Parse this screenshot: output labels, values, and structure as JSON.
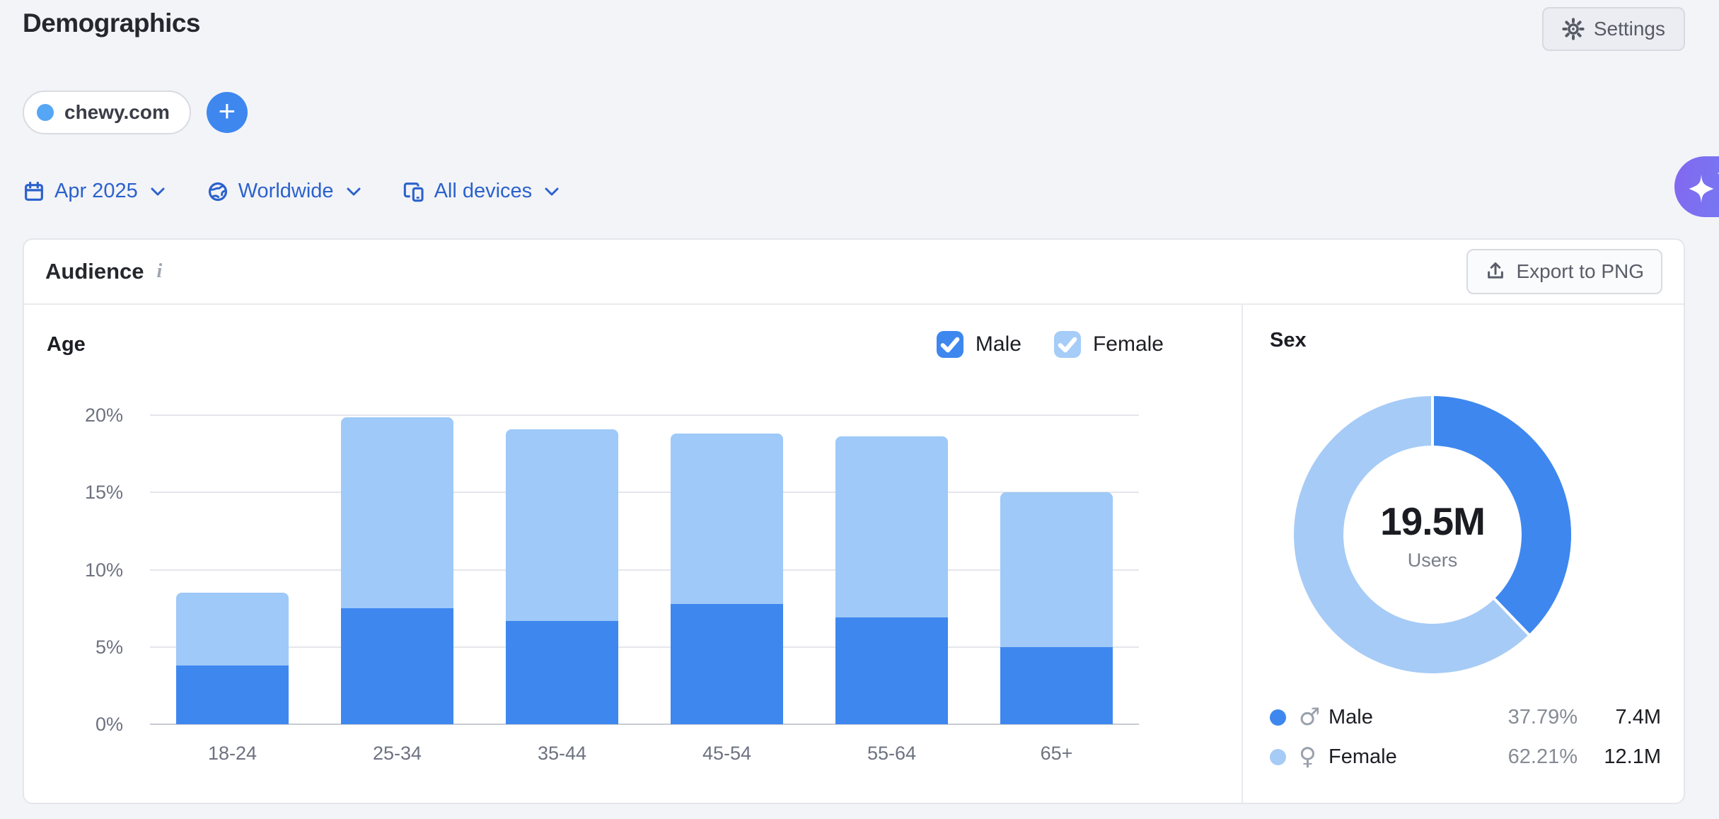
{
  "page": {
    "title": "Demographics"
  },
  "header": {
    "settings_label": "Settings"
  },
  "domain_chip": {
    "label": "chewy.com",
    "dot_color": "#55a6f4",
    "add_label": "+"
  },
  "filters": {
    "date": "Apr 2025",
    "location": "Worldwide",
    "devices": "All devices"
  },
  "audience": {
    "title": "Audience",
    "info_glyph": "i",
    "export_label": "Export to PNG"
  },
  "age_section": {
    "title": "Age",
    "legend": [
      {
        "label": "Male",
        "color": "#3e87ef",
        "checked": true
      },
      {
        "label": "Female",
        "color": "#a6ccf8",
        "checked": true
      }
    ]
  },
  "sex_section": {
    "title": "Sex",
    "center_value": "19.5M",
    "center_label": "Users",
    "legend": [
      {
        "label": "Male",
        "symbol": "♂",
        "percent": "37.79%",
        "value": "7.4M",
        "color": "#3e87ef"
      },
      {
        "label": "Female",
        "symbol": "♀",
        "percent": "62.21%",
        "value": "12.1M",
        "color": "#a6cbf6"
      }
    ]
  },
  "icons": {
    "settings": "gear-icon",
    "date_filter": "calendar-icon",
    "location_filter": "globe-icon",
    "devices_filter": "device-stack-icon",
    "dropdown": "chevron-down-icon",
    "export": "upload-icon",
    "assistant": "sparkles-icon",
    "checkbox_mark": "✓",
    "info": "i"
  },
  "chart_data": [
    {
      "type": "bar",
      "stacked": true,
      "title": "Age",
      "categories": [
        "18-24",
        "25-34",
        "35-44",
        "45-54",
        "55-64",
        "65+"
      ],
      "series": [
        {
          "name": "Male",
          "color": "#3e87ef",
          "values": [
            3.8,
            7.5,
            6.7,
            7.8,
            6.9,
            5.0
          ]
        },
        {
          "name": "Female",
          "color": "#9ec9f8",
          "values": [
            4.7,
            12.35,
            12.4,
            11.0,
            11.75,
            10.0
          ]
        }
      ],
      "ylabel": "",
      "ylim": [
        0,
        20
      ],
      "yticks": [
        0,
        5,
        10,
        15,
        20
      ],
      "unit": "%",
      "grid": true,
      "legend_position": "top-right"
    },
    {
      "type": "pie",
      "subtype": "donut",
      "title": "Sex",
      "labels": [
        "Male",
        "Female"
      ],
      "values_percent": [
        37.79,
        62.21
      ],
      "values_abs": [
        "7.4M",
        "12.1M"
      ],
      "total": "19.5M",
      "total_label": "Users",
      "colors": [
        "#3e87ef",
        "#a6cbf6"
      ],
      "start_angle_deg": 0,
      "direction": "clockwise"
    }
  ]
}
